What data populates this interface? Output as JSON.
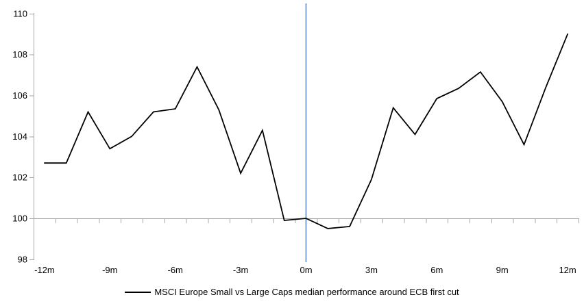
{
  "chart_data": {
    "type": "line",
    "title": "",
    "legend": "MSCI Europe Small vs Large Caps median performance around ECB first cut",
    "x_label_suffix": "m",
    "months": [
      -12,
      -11,
      -10,
      -9,
      -8,
      -7,
      -6,
      -5,
      -4,
      -3,
      -2,
      -1,
      0,
      1,
      2,
      3,
      4,
      5,
      6,
      7,
      8,
      9,
      10,
      11,
      12
    ],
    "series": [
      {
        "name": "MSCI Europe Small vs Large Caps median performance around ECB first cut",
        "color": "#000000",
        "values": [
          102.7,
          102.7,
          105.2,
          103.4,
          104.0,
          105.2,
          105.35,
          107.4,
          105.3,
          102.2,
          104.3,
          99.9,
          100.0,
          99.5,
          99.6,
          101.9,
          105.4,
          104.1,
          105.85,
          106.35,
          107.15,
          105.7,
          103.6,
          106.4,
          109.0
        ]
      }
    ],
    "x_tick_labels": [
      "-12m",
      "-9m",
      "-6m",
      "-3m",
      "0m",
      "3m",
      "6m",
      "9m",
      "12m"
    ],
    "x_tick_label_months": [
      -12,
      -9,
      -6,
      -3,
      0,
      3,
      6,
      9,
      12
    ],
    "y_ticks": [
      98,
      100,
      102,
      104,
      106,
      108,
      110
    ],
    "ylim": [
      98,
      110
    ],
    "baseline_value": 100,
    "event_line_month": 0,
    "legend_position": "bottom-center",
    "grid": "single horizontal line at baseline 100 with minor month ticks",
    "colors": {
      "series_line": "#000000",
      "event_line": "#7AA4D6",
      "axis": "#A6A6A6",
      "text": "#000000",
      "background": "#FFFFFF"
    }
  }
}
